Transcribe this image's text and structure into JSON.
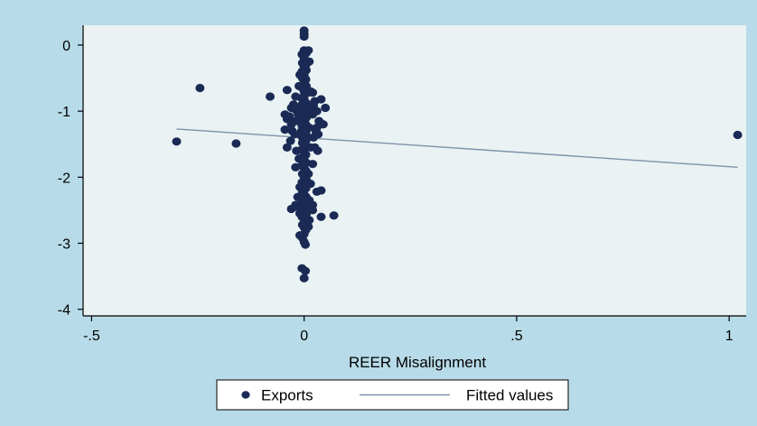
{
  "chart_data": {
    "type": "scatter",
    "title": "",
    "xlabel": "REER Misalignment",
    "ylabel": "",
    "xlim": [
      -0.52,
      1.04
    ],
    "ylim": [
      -4.1,
      0.3
    ],
    "x_ticks": [
      -0.5,
      0,
      0.5,
      1
    ],
    "x_tick_labels": [
      "-.5",
      "0",
      ".5",
      "1"
    ],
    "y_ticks": [
      0,
      -1,
      -2,
      -3,
      -4
    ],
    "y_tick_labels": [
      "0",
      "-1",
      "-2",
      "-3",
      "-4"
    ],
    "grid": false,
    "legend_position": "bottom",
    "colors": {
      "background": "#b7dbe8",
      "plot_area": "#eaf2f3",
      "points": "#1a2a55",
      "fitted_line": "#7d92aa"
    },
    "series": [
      {
        "name": "Exports",
        "kind": "scatter",
        "points": [
          [
            0.0,
            0.22
          ],
          [
            0.0,
            0.17
          ],
          [
            0.0,
            0.13
          ],
          [
            0.0,
            -0.08
          ],
          [
            -0.005,
            -0.14
          ],
          [
            0.005,
            -0.12
          ],
          [
            0.0,
            -0.2
          ],
          [
            -0.004,
            -0.27
          ],
          [
            0.004,
            -0.3
          ],
          [
            0.0,
            -0.33
          ],
          [
            -0.005,
            -0.4
          ],
          [
            0.005,
            -0.38
          ],
          [
            0.0,
            -0.45
          ],
          [
            -0.004,
            -0.5
          ],
          [
            0.004,
            -0.52
          ],
          [
            0.0,
            -0.58
          ],
          [
            -0.004,
            -0.65
          ],
          [
            0.005,
            -0.62
          ],
          [
            0.0,
            -0.7
          ],
          [
            0.006,
            -0.73
          ],
          [
            -0.006,
            -0.8
          ],
          [
            0.0,
            -0.82
          ],
          [
            0.005,
            -0.88
          ],
          [
            -0.005,
            -0.9
          ],
          [
            0.0,
            -0.95
          ],
          [
            0.004,
            -1.0
          ],
          [
            -0.005,
            -1.03
          ],
          [
            0.0,
            -1.05
          ],
          [
            0.005,
            -1.1
          ],
          [
            -0.004,
            -1.12
          ],
          [
            0.0,
            -1.16
          ],
          [
            0.004,
            -1.2
          ],
          [
            -0.005,
            -1.22
          ],
          [
            0.0,
            -1.25
          ],
          [
            0.006,
            -1.28
          ],
          [
            -0.006,
            -1.3
          ],
          [
            0.0,
            -1.33
          ],
          [
            0.005,
            -1.36
          ],
          [
            -0.005,
            -1.39
          ],
          [
            0.0,
            -1.42
          ],
          [
            0.004,
            -1.45
          ],
          [
            -0.004,
            -1.48
          ],
          [
            0.0,
            -1.5
          ],
          [
            0.005,
            -1.55
          ],
          [
            -0.005,
            -1.58
          ],
          [
            0.0,
            -1.62
          ],
          [
            0.004,
            -1.66
          ],
          [
            -0.004,
            -1.7
          ],
          [
            0.0,
            -1.74
          ],
          [
            0.005,
            -1.78
          ],
          [
            -0.005,
            -1.82
          ],
          [
            0.0,
            -1.86
          ],
          [
            0.004,
            -1.9
          ],
          [
            -0.004,
            -1.95
          ],
          [
            0.0,
            -2.0
          ],
          [
            0.005,
            -2.04
          ],
          [
            -0.005,
            -2.08
          ],
          [
            0.0,
            -2.12
          ],
          [
            0.004,
            -2.17
          ],
          [
            -0.004,
            -2.22
          ],
          [
            0.0,
            -2.26
          ],
          [
            0.005,
            -2.3
          ],
          [
            -0.005,
            -2.35
          ],
          [
            0.0,
            -2.4
          ],
          [
            0.004,
            -2.44
          ],
          [
            -0.004,
            -2.48
          ],
          [
            0.0,
            -2.52
          ],
          [
            0.005,
            -2.56
          ],
          [
            -0.005,
            -2.6
          ],
          [
            0.0,
            -2.64
          ],
          [
            0.004,
            -2.68
          ],
          [
            -0.004,
            -2.72
          ],
          [
            0.0,
            -2.76
          ],
          [
            0.004,
            -2.8
          ],
          [
            0.0,
            -2.86
          ],
          [
            -0.004,
            -2.92
          ],
          [
            0.0,
            -2.98
          ],
          [
            0.003,
            -3.02
          ],
          [
            0.01,
            -0.08
          ],
          [
            0.012,
            -0.25
          ],
          [
            -0.01,
            -0.45
          ],
          [
            0.015,
            -0.7
          ],
          [
            -0.012,
            -0.62
          ],
          [
            0.013,
            -0.95
          ],
          [
            -0.014,
            -1.05
          ],
          [
            0.012,
            -1.25
          ],
          [
            -0.01,
            -1.35
          ],
          [
            0.015,
            -1.55
          ],
          [
            -0.012,
            -1.72
          ],
          [
            0.01,
            -1.95
          ],
          [
            -0.01,
            -2.15
          ],
          [
            0.012,
            -2.35
          ],
          [
            -0.01,
            -2.55
          ],
          [
            0.01,
            -2.75
          ],
          [
            -0.01,
            -2.88
          ],
          [
            0.02,
            -0.72
          ],
          [
            0.025,
            -0.85
          ],
          [
            -0.02,
            -0.78
          ],
          [
            -0.025,
            -0.9
          ],
          [
            0.02,
            -1.05
          ],
          [
            -0.02,
            -1.15
          ],
          [
            0.03,
            -1.25
          ],
          [
            -0.03,
            -1.2
          ],
          [
            0.022,
            -1.4
          ],
          [
            -0.022,
            -1.35
          ],
          [
            0.025,
            -1.55
          ],
          [
            -0.018,
            -1.6
          ],
          [
            0.02,
            -1.8
          ],
          [
            -0.02,
            -1.85
          ],
          [
            0.015,
            -2.1
          ],
          [
            -0.015,
            -2.3
          ],
          [
            0.02,
            -2.5
          ],
          [
            -0.018,
            -2.45
          ],
          [
            0.012,
            -2.65
          ],
          [
            -0.03,
            -0.95
          ],
          [
            -0.035,
            -1.08
          ],
          [
            -0.04,
            -1.12
          ],
          [
            0.03,
            -1.0
          ],
          [
            0.035,
            -1.15
          ],
          [
            -0.028,
            -1.3
          ],
          [
            0.028,
            -1.32
          ],
          [
            -0.032,
            -1.45
          ],
          [
            0.033,
            -1.35
          ],
          [
            0.032,
            -1.6
          ],
          [
            -0.04,
            -1.55
          ],
          [
            -0.02,
            -2.42
          ],
          [
            -0.03,
            -2.48
          ],
          [
            0.04,
            -0.82
          ],
          [
            0.045,
            -1.2
          ],
          [
            -0.045,
            -1.28
          ],
          [
            -0.02,
            -0.98
          ],
          [
            0.022,
            -0.92
          ],
          [
            0.03,
            -2.22
          ],
          [
            0.02,
            -2.42
          ],
          [
            0.05,
            -0.95
          ],
          [
            -0.3,
            -1.46
          ],
          [
            -0.245,
            -0.65
          ],
          [
            -0.16,
            -1.49
          ],
          [
            -0.08,
            -0.78
          ],
          [
            -0.045,
            -1.05
          ],
          [
            -0.04,
            -0.68
          ],
          [
            -0.035,
            -1.08
          ],
          [
            0.04,
            -2.6
          ],
          [
            0.07,
            -2.58
          ],
          [
            0.04,
            -2.2
          ],
          [
            -0.005,
            -3.38
          ],
          [
            0.003,
            -3.42
          ],
          [
            0.0,
            -3.53
          ],
          [
            1.02,
            -1.36
          ]
        ]
      },
      {
        "name": "Fitted values",
        "kind": "line",
        "points": [
          [
            -0.3,
            -1.27
          ],
          [
            1.02,
            -1.85
          ]
        ]
      }
    ],
    "legend": [
      "Exports",
      "Fitted values"
    ]
  }
}
